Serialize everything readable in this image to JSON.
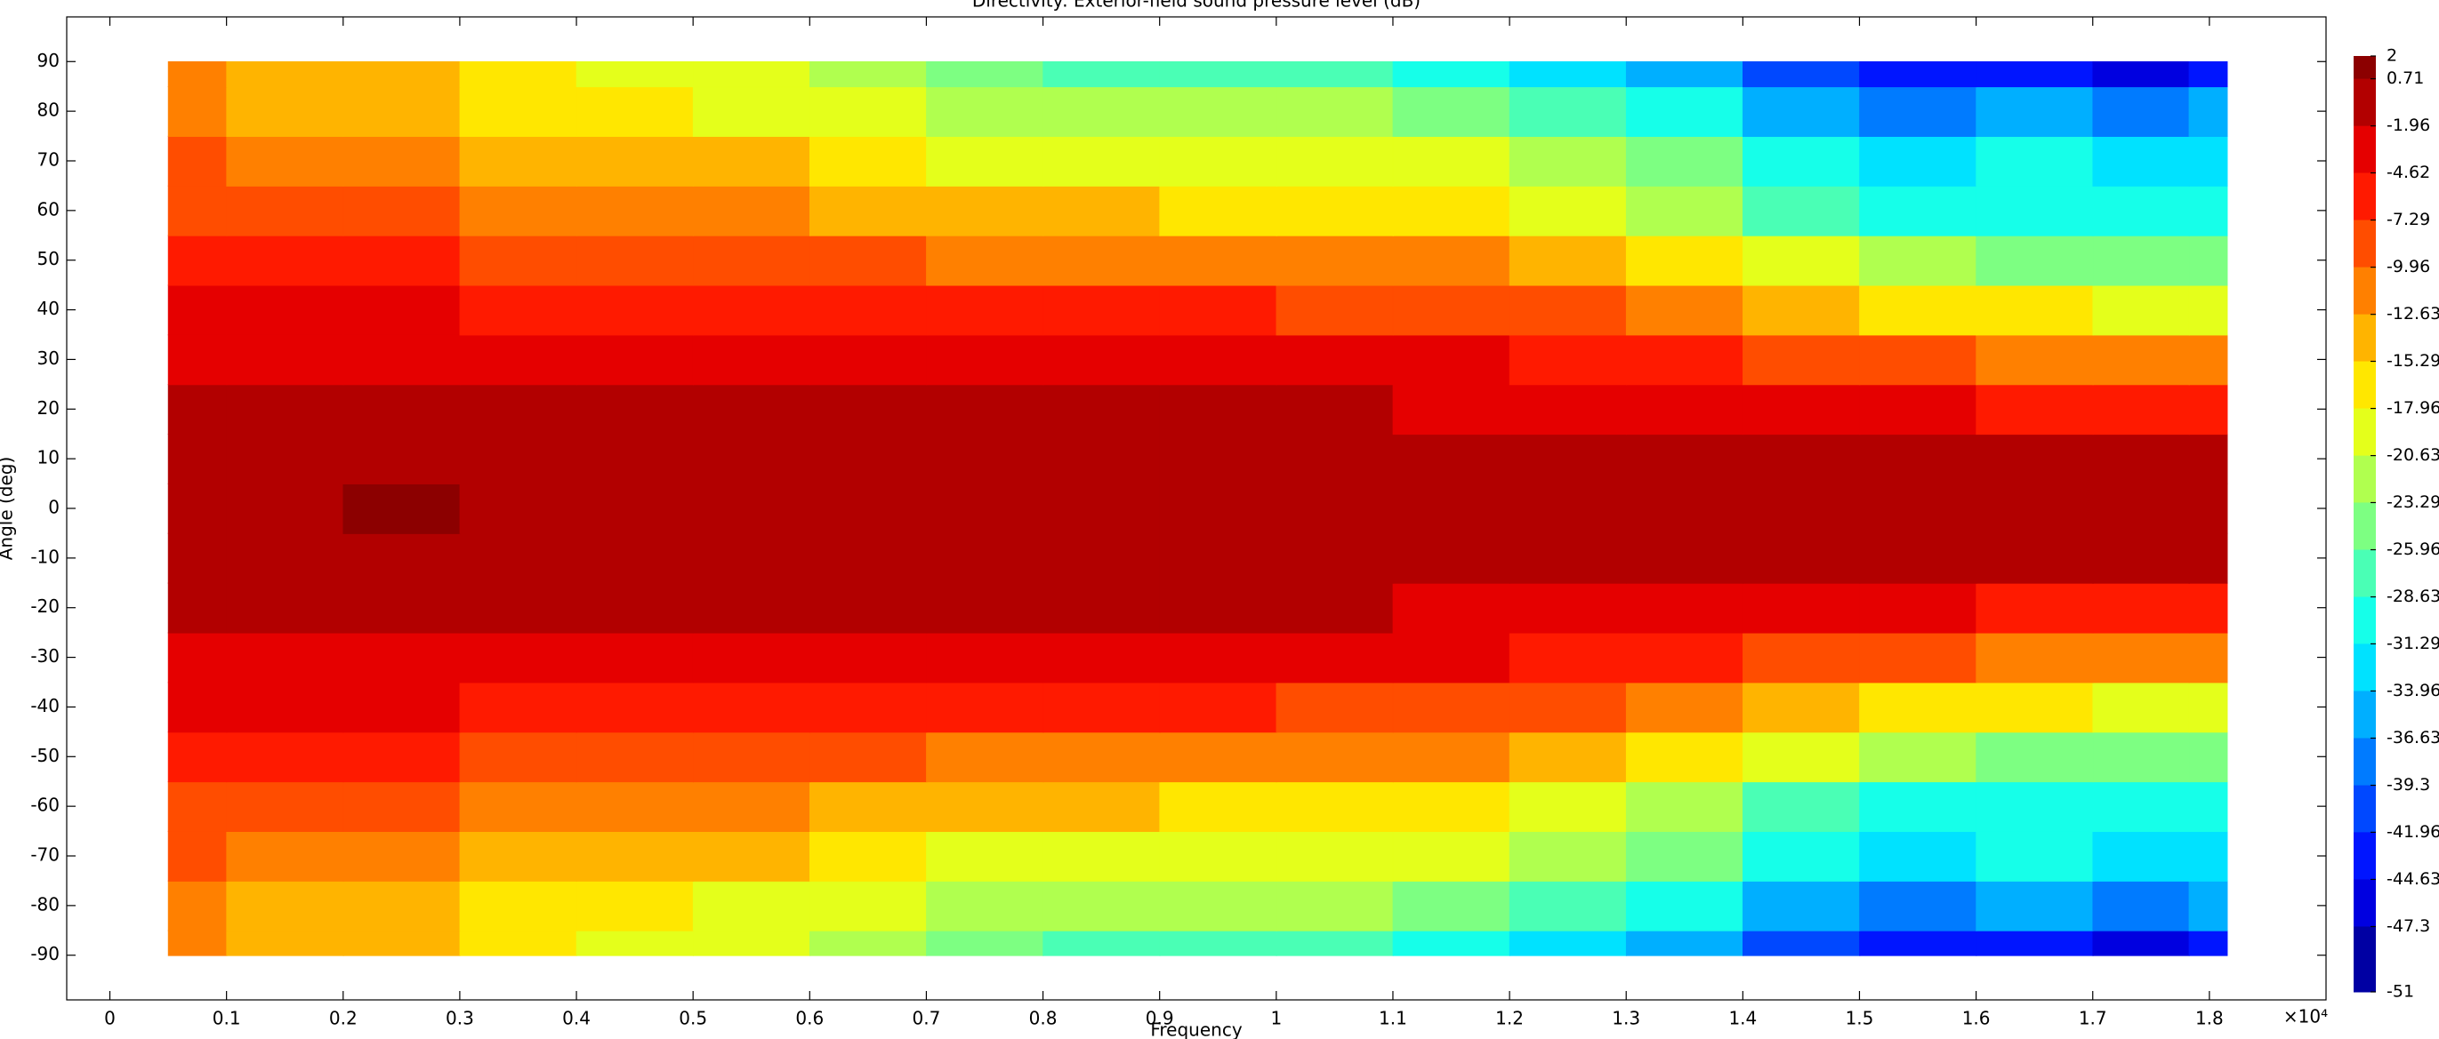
{
  "chart_data": {
    "type": "contour",
    "title": "Directivity: Exterior-field sound pressure level (dB)",
    "x_label": "Frequency",
    "y_label": "Angle (deg)",
    "x_multiplier": "×10⁴",
    "xlim": [
      -0.037,
      1.9
    ],
    "ylim": [
      -99,
      99
    ],
    "xticks": [
      0,
      0.1,
      0.2,
      0.3,
      0.4,
      0.5,
      0.6,
      0.7,
      0.8,
      0.9,
      1,
      1.1,
      1.2,
      1.3,
      1.4,
      1.5,
      1.6,
      1.7,
      1.8
    ],
    "yticks": [
      -90,
      -80,
      -70,
      -60,
      -50,
      -40,
      -30,
      -20,
      -10,
      0,
      10,
      20,
      30,
      40,
      50,
      60,
      70,
      80,
      90
    ],
    "colormap": "jet",
    "colorbar": {
      "lim": [
        -51,
        2
      ],
      "ticks": [
        2,
        0.71,
        -1.96,
        -4.62,
        -7.29,
        -9.96,
        -12.63,
        -15.29,
        -17.96,
        -20.63,
        -23.29,
        -25.96,
        -28.63,
        -31.29,
        -33.96,
        -36.63,
        -39.3,
        -41.96,
        -44.63,
        -47.3,
        -51
      ]
    },
    "x": [
      0.05,
      0.15,
      0.25,
      0.35,
      0.45,
      0.55,
      0.65,
      0.75,
      0.85,
      0.95,
      1.05,
      1.15,
      1.25,
      1.35,
      1.45,
      1.55,
      1.65,
      1.75,
      1.815
    ],
    "y": [
      -90,
      -80,
      -70,
      -60,
      -50,
      -40,
      -30,
      -20,
      -10,
      0,
      10,
      20,
      30,
      40,
      50,
      60,
      70,
      80,
      90
    ],
    "z": [
      [
        -12,
        -14,
        -15,
        -17,
        -19,
        -20,
        -21,
        -24,
        -26,
        -26,
        -27,
        -29,
        -32,
        -36,
        -40,
        -44,
        -42,
        -47,
        -44
      ],
      [
        -10.5,
        -13,
        -14,
        -16,
        -17,
        -18,
        -19,
        -21,
        -22,
        -22,
        -23,
        -24,
        -27,
        -30,
        -35,
        -37,
        -36,
        -38,
        -36
      ],
      [
        -9,
        -11,
        -12,
        -14,
        -15,
        -15,
        -17,
        -18,
        -19,
        -19,
        -20,
        -20,
        -22,
        -25,
        -30,
        -33,
        -31,
        -33,
        -32
      ],
      [
        -7.5,
        -9,
        -9,
        -11,
        -12,
        -12,
        -13,
        -14,
        -15,
        -16,
        -16,
        -17,
        -18,
        -21,
        -26,
        -30,
        -29,
        -30,
        -30
      ],
      [
        -5.5,
        -6.5,
        -6,
        -8,
        -9,
        -8,
        -9,
        -10,
        -10,
        -11,
        -12,
        -12,
        -13,
        -16,
        -20,
        -23,
        -24,
        -24,
        -24
      ],
      [
        -3.5,
        -4.5,
        -4,
        -5,
        -5.5,
        -5,
        -6,
        -6,
        -6.5,
        -7,
        -7.5,
        -8,
        -9,
        -11,
        -14,
        -16,
        -17,
        -18,
        -18
      ],
      [
        -2,
        -2.5,
        -2,
        -3,
        -3,
        -2.5,
        -3,
        -3.2,
        -3.5,
        -4,
        -4,
        -4.5,
        -5.5,
        -6.5,
        -8,
        -9,
        -10,
        -10,
        -10
      ],
      [
        -1.2,
        -1.5,
        -1,
        -1.5,
        -1.5,
        -1.2,
        -1.5,
        -1.6,
        -1.8,
        -1.9,
        -1.8,
        -2.2,
        -3,
        -3.5,
        -4,
        -4.5,
        -5,
        -5,
        -5
      ],
      [
        -0.8,
        -0.8,
        0,
        -0.8,
        -0.8,
        -0.8,
        -0.8,
        -1,
        -1,
        -1,
        -1,
        -1,
        -1.2,
        -1.3,
        -1.5,
        -1.5,
        -1.5,
        -1.6,
        -1.6
      ],
      [
        -0.5,
        -0.5,
        0.8,
        -0.5,
        -0.5,
        -0.5,
        -0.5,
        -0.5,
        -0.5,
        -0.5,
        -0.5,
        -0.5,
        -0.5,
        -0.5,
        -0.5,
        -0.5,
        -0.5,
        -0.5,
        -0.5
      ],
      [
        -0.8,
        -0.8,
        0,
        -0.8,
        -0.8,
        -0.8,
        -0.8,
        -1,
        -1,
        -1,
        -1,
        -1,
        -1.2,
        -1.3,
        -1.5,
        -1.5,
        -1.5,
        -1.6,
        -1.6
      ],
      [
        -1.2,
        -1.5,
        -1,
        -1.5,
        -1.5,
        -1.2,
        -1.5,
        -1.6,
        -1.8,
        -1.9,
        -1.8,
        -2.2,
        -3,
        -3.5,
        -4,
        -4.5,
        -5,
        -5,
        -5
      ],
      [
        -2,
        -2.5,
        -2,
        -3,
        -3,
        -2.5,
        -3,
        -3.2,
        -3.5,
        -4,
        -4,
        -4.5,
        -5.5,
        -6.5,
        -8,
        -9,
        -10,
        -10,
        -10
      ],
      [
        -3.5,
        -4.5,
        -4,
        -5,
        -5.5,
        -5,
        -6,
        -6,
        -6.5,
        -7,
        -7.5,
        -8,
        -9,
        -11,
        -14,
        -16,
        -17,
        -18,
        -18
      ],
      [
        -5.5,
        -6.5,
        -6,
        -8,
        -9,
        -8,
        -9,
        -10,
        -10,
        -11,
        -12,
        -12,
        -13,
        -16,
        -20,
        -23,
        -24,
        -24,
        -24
      ],
      [
        -7.5,
        -9,
        -9,
        -11,
        -12,
        -12,
        -13,
        -14,
        -15,
        -16,
        -16,
        -17,
        -18,
        -21,
        -26,
        -30,
        -29,
        -30,
        -30
      ],
      [
        -9,
        -11,
        -12,
        -14,
        -15,
        -15,
        -17,
        -18,
        -19,
        -19,
        -20,
        -20,
        -22,
        -25,
        -30,
        -33,
        -31,
        -33,
        -32
      ],
      [
        -10.5,
        -13,
        -14,
        -16,
        -17,
        -18,
        -19,
        -21,
        -22,
        -22,
        -23,
        -24,
        -27,
        -30,
        -35,
        -37,
        -36,
        -38,
        -36
      ],
      [
        -12,
        -14,
        -15,
        -17,
        -19,
        -20,
        -21,
        -24,
        -26,
        -26,
        -27,
        -29,
        -32,
        -36,
        -40,
        -44,
        -42,
        -47,
        -44
      ]
    ]
  }
}
